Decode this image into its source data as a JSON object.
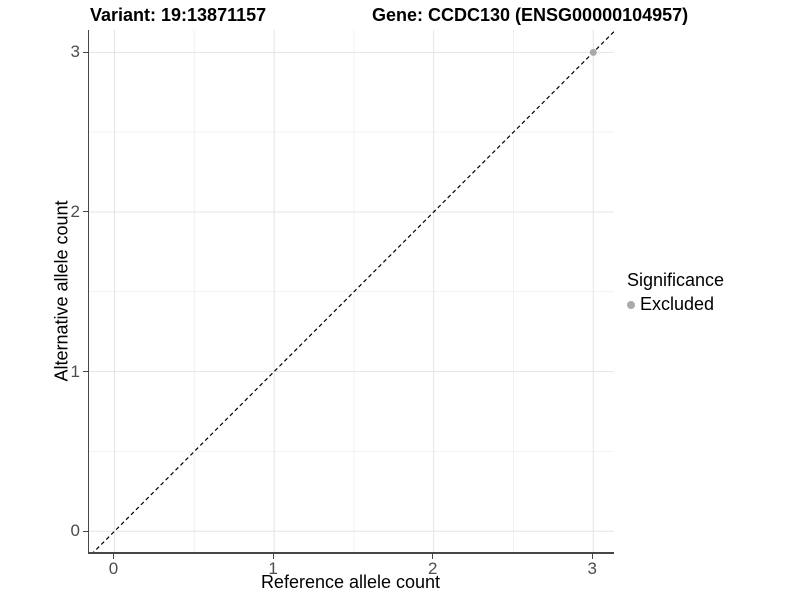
{
  "header": {
    "variant_title": "Variant: 19:13871157",
    "gene_title": "Gene: CCDC130 (ENSG00000104957)"
  },
  "chart_data": {
    "type": "scatter",
    "xlabel": "Reference allele count",
    "ylabel": "Alternative allele count",
    "x_ticks": [
      0,
      1,
      2,
      3
    ],
    "y_ticks": [
      0,
      1,
      2,
      3
    ],
    "minor_ticks_x": [
      0.5,
      1.5,
      2.5
    ],
    "minor_ticks_y": [
      0.5,
      1.5,
      2.5
    ],
    "xlim": [
      -0.16,
      3.13
    ],
    "ylim": [
      -0.13,
      3.14
    ],
    "grid": {
      "major": true,
      "minor": true
    },
    "reference_line": {
      "type": "identity y=x",
      "style": "dashed",
      "color": "#000000"
    },
    "series": [
      {
        "name": "Excluded",
        "color": "#aaaaaa",
        "points": [
          [
            3,
            3
          ]
        ]
      }
    ],
    "legend": {
      "title": "Significance",
      "position": "right",
      "items": [
        {
          "label": "Excluded",
          "color": "#aaaaaa"
        }
      ]
    }
  },
  "colors": {
    "background": "#ffffff",
    "grid_major": "#e4e4e4",
    "grid_minor": "#f2f2f2",
    "axis_line": "#474747",
    "tick_text": "#4d4d4d",
    "title_text": "#000000"
  }
}
